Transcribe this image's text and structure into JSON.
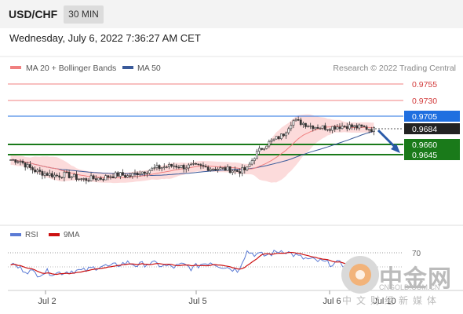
{
  "header": {
    "symbol": "USD/CHF",
    "timeframe": "30 MIN"
  },
  "datetime": "Wednesday, July 6, 2022 7:36:27 AM CET",
  "legend": {
    "ma20": "MA 20 + Bollinger Bands",
    "ma50": "MA 50",
    "credit": "Research © 2022 Trading Central"
  },
  "colors": {
    "ma20": "#f08080",
    "ma50": "#3a5a9a",
    "bands": "#fcd5d5",
    "green": "#1a7a1a",
    "blue": "#1f6fe0",
    "rsi": "#5b7bd5",
    "rsi_ma": "#cc1111"
  },
  "price_labels": {
    "r2": "0.9755",
    "r1": "0.9730",
    "pivot": "0.9705",
    "last": "0.9684",
    "s1": "0.9660",
    "s2": "0.9645"
  },
  "rsi": {
    "label": "RSI",
    "ma_label": "9MA",
    "level": "70"
  },
  "xaxis": [
    "Jul 2",
    "Jul 5",
    "Jul 6",
    "Jul 10"
  ],
  "watermark": {
    "brand": "中金网",
    "domain": "CNGOLD.COM.CN",
    "tagline": "中文财经新媒体"
  },
  "chart_data": {
    "type": "candlestick",
    "levels": [
      {
        "name": "resistance-2",
        "value": 0.9755,
        "color": "#f08080"
      },
      {
        "name": "resistance-1",
        "value": 0.973,
        "color": "#f08080"
      },
      {
        "name": "pivot",
        "value": 0.9705,
        "color": "#1f6fe0"
      },
      {
        "name": "last",
        "value": 0.9684,
        "color": "#222222"
      },
      {
        "name": "support-1",
        "value": 0.966,
        "color": "#1a7a1a"
      },
      {
        "name": "support-2",
        "value": 0.9645,
        "color": "#1a7a1a"
      }
    ],
    "price_path": [
      0.9637,
      0.9636,
      0.9625,
      0.9618,
      0.9615,
      0.9612,
      0.9614,
      0.961,
      0.9606,
      0.9608,
      0.9608,
      0.9612,
      0.9614,
      0.9611,
      0.9617,
      0.962,
      0.9624,
      0.9626,
      0.9628,
      0.9626,
      0.9627,
      0.9626,
      0.9624,
      0.9623,
      0.9622,
      0.9619,
      0.9622,
      0.9646,
      0.966,
      0.9668,
      0.9676,
      0.9698,
      0.9695,
      0.969,
      0.9688,
      0.9687,
      0.9689,
      0.969,
      0.9688,
      0.9687,
      0.9684
    ],
    "rsi_path": [
      55,
      48,
      44,
      40,
      43,
      41,
      43,
      45,
      44,
      48,
      52,
      50,
      54,
      56,
      52,
      55,
      54,
      51,
      50,
      53,
      48,
      54,
      57,
      52,
      49,
      45,
      72,
      68,
      66,
      70,
      74,
      68,
      63,
      60,
      58,
      55,
      55,
      52,
      50,
      48,
      50
    ]
  }
}
